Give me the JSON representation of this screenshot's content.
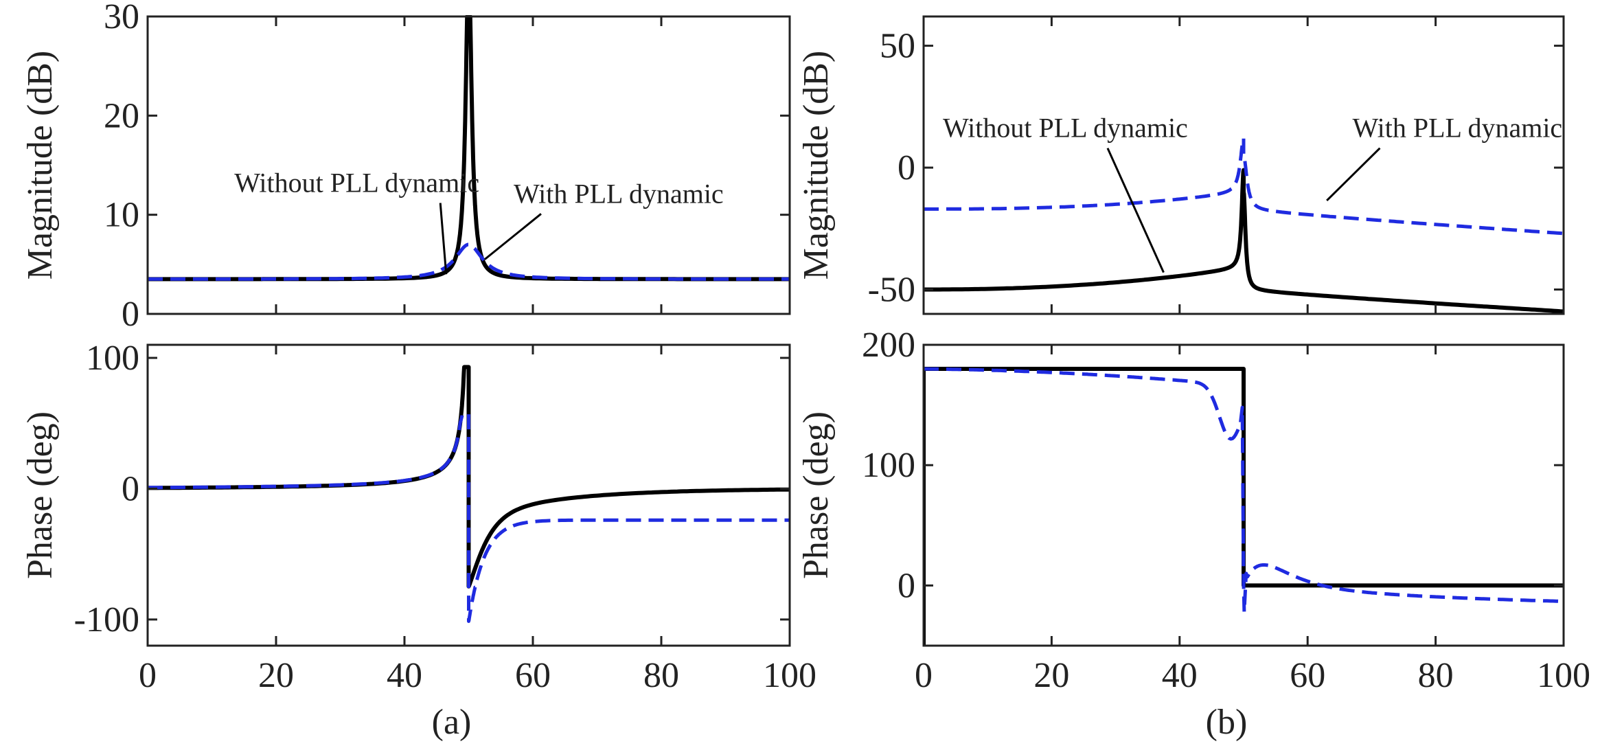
{
  "chart_data": [
    {
      "id": "a-mag",
      "type": "line",
      "ylabel": "Magnitude (dB)",
      "xlim": [
        0,
        100
      ],
      "ylim": [
        0,
        30
      ],
      "xticks": [],
      "yticks": [
        0,
        10,
        20,
        30
      ],
      "series": [
        {
          "name": "Without PLL dynamic",
          "model": "mag",
          "params": {
            "base": 3.5,
            "A": 32,
            "w": 0.55,
            "peak": 30,
            "decay": 0,
            "logSlope": 0,
            "skew": 0
          }
        },
        {
          "name": "With PLL dynamic",
          "model": "mag",
          "params": {
            "base": 3.5,
            "A": 3.5,
            "w": 2.6,
            "peak": 30,
            "decay": 0,
            "logSlope": 0,
            "skew": 0
          }
        }
      ],
      "annotations": [
        {
          "text": "Without PLL dynamic",
          "x": 13.5,
          "y": 12.3,
          "ax": 46.5,
          "ay": 4.0
        },
        {
          "text": "With PLL dynamic",
          "x": 57.0,
          "y": 11.2,
          "ax": 52.5,
          "ay": 5.5
        }
      ]
    },
    {
      "id": "a-phase",
      "type": "line",
      "ylabel": "Phase (deg)",
      "xlim": [
        0,
        100
      ],
      "ylim": [
        -120,
        110
      ],
      "xticks": [
        0,
        20,
        40,
        60,
        80,
        100
      ],
      "yticks": [
        -100,
        0,
        100
      ],
      "caption": "(a)",
      "series": [
        {
          "name": "Without PLL dynamic",
          "model": "phase",
          "params": {
            "left": 0,
            "K": 160,
            "kmin": 32,
            "plusPeak": 93,
            "minusPeak": -75,
            "rightFinal": 0,
            "tau": 0,
            "dipAmp": 0
          }
        },
        {
          "name": "With PLL dynamic",
          "model": "phase",
          "params": {
            "left": 0,
            "K": 120,
            "kmin": 17,
            "plusPeak": 57,
            "minusPeak": -102,
            "rightFinal": -24,
            "tau": 0,
            "dipAmp": 0,
            "pre": 1.5
          }
        }
      ]
    },
    {
      "id": "b-mag",
      "type": "line",
      "ylabel": "Magnitude (dB)",
      "xlim": [
        0,
        100
      ],
      "ylim": [
        -60,
        62
      ],
      "xticks": [],
      "yticks": [
        -50,
        0,
        50
      ],
      "series": [
        {
          "name": "Without PLL dynamic",
          "model": "mag",
          "params": {
            "base": -50,
            "A": 40,
            "w": 0.35,
            "peak": 36,
            "decay": 0.1,
            "logSlope": 3,
            "skew": 0
          }
        },
        {
          "name": "With PLL dynamic",
          "model": "mag",
          "params": {
            "base": -17,
            "A": 22,
            "w": 0.6,
            "peak": 56,
            "decay": 0.1,
            "logSlope": 3,
            "skew": 0
          }
        }
      ],
      "annotations": [
        {
          "text": "Without PLL dynamic",
          "x": 3.0,
          "y": 12.5,
          "ax": 37.5,
          "ay": -43.0
        },
        {
          "text": "With PLL dynamic",
          "x": 67.0,
          "y": 12.5,
          "ax": 63.0,
          "ay": -13.5
        }
      ]
    },
    {
      "id": "b-phase",
      "type": "line",
      "ylabel": "Phase (deg)",
      "xlim": [
        0,
        100
      ],
      "ylim": [
        -50,
        200
      ],
      "xticks": [
        0,
        20,
        40,
        60,
        80,
        100
      ],
      "yticks": [
        0,
        100,
        200
      ],
      "caption": "(b)",
      "series": [
        {
          "name": "Without PLL dynamic",
          "model": "step",
          "params": {
            "high": 180,
            "low": 0,
            "stepAt": 50,
            "startLow": -50
          }
        },
        {
          "name": "With PLL dynamic",
          "model": "bphase",
          "params": {}
        }
      ]
    }
  ]
}
